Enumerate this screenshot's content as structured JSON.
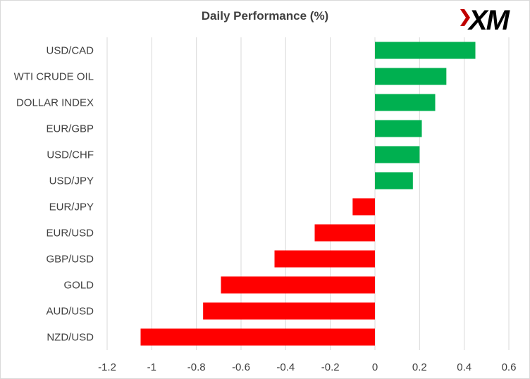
{
  "chart_data": {
    "type": "bar",
    "orientation": "horizontal",
    "title": "Daily Performance  (%)",
    "xlabel": "",
    "ylabel": "",
    "xlim": [
      -1.2,
      0.6
    ],
    "ticks": [
      "-1.2",
      "-1",
      "-0.8",
      "-0.6",
      "-0.4",
      "-0.2",
      "0",
      "0.2",
      "0.4",
      "0.6"
    ],
    "categories": [
      "USD/CAD",
      "WTI CRUDE OIL",
      "DOLLAR INDEX",
      "EUR/GBP",
      "USD/CHF",
      "USD/JPY",
      "EUR/JPY",
      "EUR/USD",
      "GBP/USD",
      "GOLD",
      "AUD/USD",
      "NZD/USD"
    ],
    "values": [
      0.45,
      0.32,
      0.27,
      0.21,
      0.2,
      0.17,
      -0.1,
      -0.27,
      -0.45,
      -0.69,
      -0.77,
      -1.05
    ],
    "grid": "vertical",
    "colors": {
      "positive": "#00b050",
      "negative": "#ff0000",
      "grid": "#d9d9d9",
      "text": "#404040"
    }
  },
  "logo": {
    "text": "XM",
    "colors": {
      "mark": "#c00000",
      "letters": "#000000"
    }
  }
}
